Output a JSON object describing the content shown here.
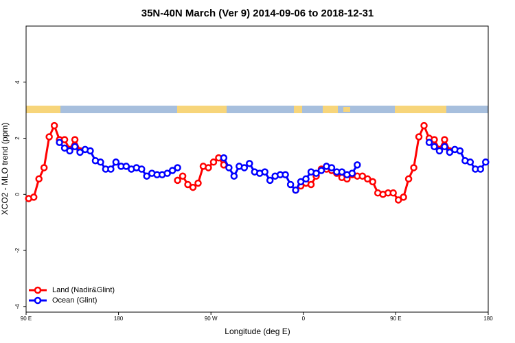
{
  "chart_data": {
    "type": "line",
    "title": "35N-40N March (Ver 9)   2014-09-06 to 2018-12-31",
    "x_label": "Longitude (deg E)",
    "y_label": "XCO2 - MLO trend (ppm)",
    "xlim": [
      90,
      540
    ],
    "ylim": [
      -4.2,
      6
    ],
    "xticks": [
      {
        "value": 90,
        "label": "90 E"
      },
      180,
      {
        "value": 270,
        "label": "90 W"
      },
      {
        "value": 360,
        "label": "0"
      },
      {
        "value": 450,
        "label": "90 E"
      },
      {
        "value": 540,
        "label": "180"
      }
    ],
    "yticks": [
      4,
      2,
      0,
      -2,
      -4
    ],
    "legend": "bottom-left",
    "x": [
      92.5,
      97.5,
      102.5,
      107.5,
      112.5,
      117.5,
      122.5,
      127.5,
      132.5,
      137.5,
      142.5,
      147.5,
      152.5,
      157.5,
      162.5,
      167.5,
      172.5,
      177.5,
      182.5,
      187.5,
      192.5,
      197.5,
      202.5,
      207.5,
      212.5,
      217.5,
      222.5,
      227.5,
      232.5,
      237.5,
      242.5,
      247.5,
      252.5,
      257.5,
      262.5,
      267.5,
      272.5,
      277.5,
      282.5,
      287.5,
      292.5,
      297.5,
      302.5,
      307.5,
      312.5,
      317.5,
      322.5,
      327.5,
      332.5,
      337.5,
      342.5,
      347.5,
      352.5,
      357.5,
      362.5,
      367.5,
      372.5,
      377.5,
      382.5,
      387.5,
      392.5,
      397.5,
      402.5,
      407.5,
      412.5,
      417.5,
      422.5,
      427.5,
      432.5,
      437.5,
      442.5,
      447.5,
      452.5,
      457.5,
      462.5,
      467.5,
      472.5,
      477.5,
      482.5,
      487.5,
      492.5,
      497.5,
      502.5,
      507.5,
      512.5,
      517.5,
      522.5,
      527.5,
      532.5,
      537.5
    ],
    "series": [
      {
        "name": "Land (Nadir&Glint)",
        "color": "#ff0000",
        "values": [
          -0.15,
          -0.1,
          0.55,
          0.95,
          2.05,
          2.45,
          1.95,
          1.95,
          1.6,
          1.95,
          1.55,
          null,
          null,
          null,
          null,
          null,
          null,
          null,
          null,
          null,
          null,
          null,
          null,
          null,
          null,
          null,
          null,
          null,
          null,
          0.5,
          0.65,
          0.35,
          0.25,
          0.4,
          1.0,
          0.95,
          1.15,
          1.3,
          1.05,
          null,
          null,
          null,
          null,
          null,
          null,
          null,
          null,
          null,
          null,
          null,
          null,
          null,
          0.15,
          0.3,
          0.4,
          0.35,
          0.65,
          0.9,
          0.9,
          0.85,
          0.75,
          0.6,
          0.55,
          0.7,
          0.65,
          0.65,
          0.55,
          0.45,
          0.05,
          0,
          0.05,
          0.05,
          -0.2,
          -0.1,
          0.55,
          0.95,
          2.05,
          2.45,
          2.0,
          1.95,
          1.6,
          1.95,
          1.55,
          null,
          null,
          null,
          null,
          null,
          null,
          null
        ]
      },
      {
        "name": "Ocean (Glint)",
        "color": "#0000ff",
        "values": [
          null,
          null,
          null,
          null,
          null,
          null,
          1.85,
          1.65,
          1.55,
          1.7,
          1.5,
          1.6,
          1.55,
          1.2,
          1.15,
          0.9,
          0.9,
          1.15,
          1.0,
          1.0,
          0.9,
          0.95,
          0.9,
          0.65,
          0.75,
          0.7,
          0.7,
          0.75,
          0.85,
          0.95,
          null,
          null,
          null,
          null,
          null,
          null,
          null,
          null,
          1.3,
          0.95,
          0.65,
          1.0,
          0.95,
          1.1,
          0.8,
          0.75,
          0.8,
          0.5,
          0.65,
          0.7,
          0.7,
          0.35,
          0.15,
          0.45,
          0.55,
          0.8,
          0.75,
          0.85,
          1.0,
          0.95,
          0.8,
          0.8,
          0.7,
          0.75,
          1.05,
          null,
          null,
          null,
          null,
          null,
          null,
          null,
          null,
          null,
          null,
          null,
          null,
          null,
          1.85,
          1.7,
          1.55,
          1.7,
          1.5,
          1.6,
          1.55,
          1.2,
          1.15,
          0.9,
          0.9,
          1.15
        ]
      }
    ]
  }
}
